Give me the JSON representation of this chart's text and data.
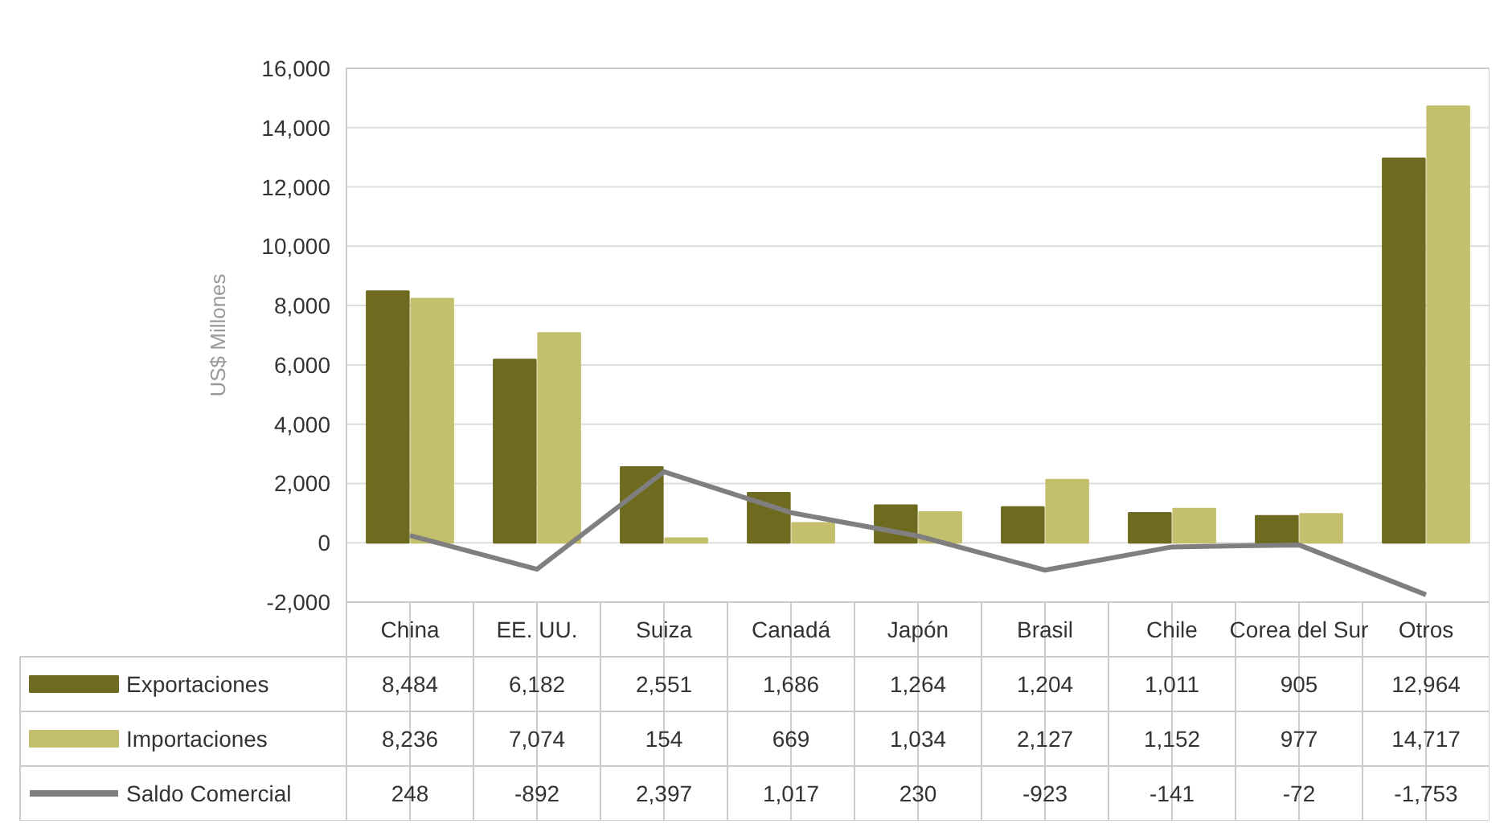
{
  "chart_data": {
    "type": "bar",
    "ylabel": "US$ Millones",
    "categories": [
      "China",
      "EE. UU.",
      "Suiza",
      "Canadá",
      "Japón",
      "Brasil",
      "Chile",
      "Corea del Sur",
      "Otros"
    ],
    "series": [
      {
        "name": "Exportaciones",
        "color": "#6e6a1f",
        "values": [
          8484,
          6182,
          2551,
          1686,
          1264,
          1204,
          1011,
          905,
          12964
        ],
        "value_labels": [
          "8,484",
          "6,182",
          "2,551",
          "1,686",
          "1,264",
          "1,204",
          "1,011",
          "905",
          "12,964"
        ]
      },
      {
        "name": "Importaciones",
        "color": "#c4bf6c",
        "values": [
          8236,
          7074,
          154,
          669,
          1034,
          2127,
          1152,
          977,
          14717
        ],
        "value_labels": [
          "8,236",
          "7,074",
          "154",
          "669",
          "1,034",
          "2,127",
          "1,152",
          "977",
          "14,717"
        ]
      },
      {
        "name": "Saldo Comercial",
        "type": "line",
        "color": "#7f7f7f",
        "values": [
          248,
          -892,
          2397,
          1017,
          230,
          -923,
          -141,
          -72,
          -1753
        ],
        "value_labels": [
          "248",
          "-892",
          "2,397",
          "1,017",
          "230",
          "-923",
          "-141",
          "-72",
          "-1,753"
        ]
      }
    ],
    "ylim": [
      -2000,
      16000
    ],
    "yticks": [
      {
        "value": -2000,
        "label": "-2,000"
      },
      0,
      {
        "value": 2000,
        "label": "2,000"
      },
      {
        "value": 4000,
        "label": "4,000"
      },
      {
        "value": 6000,
        "label": "6,000"
      },
      {
        "value": 8000,
        "label": "8,000"
      },
      {
        "value": 10000,
        "label": "10,000"
      },
      {
        "value": 12000,
        "label": "12,000"
      },
      {
        "value": 14000,
        "label": "14,000"
      },
      {
        "value": 16000,
        "label": "16,000"
      }
    ],
    "grid": "y",
    "legend": "bottom left"
  }
}
